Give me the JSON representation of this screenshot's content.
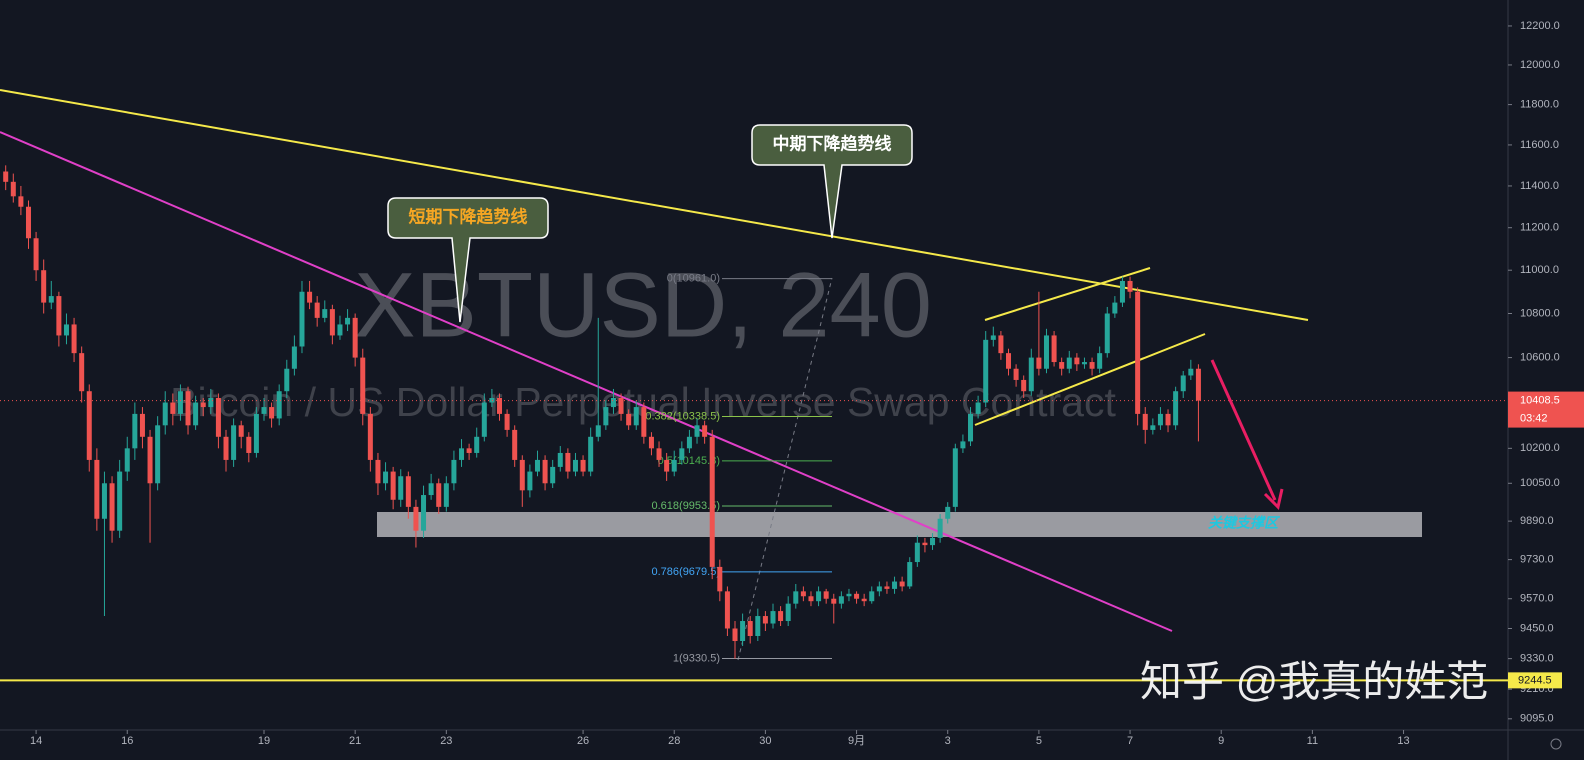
{
  "chart_data": {
    "type": "candlestick",
    "title": "XBTUSD, 240",
    "subtitle": "Bitcoin / US Dollar Perpetual Inverse Swap Contract",
    "log_scale": true,
    "up_color": "#26a69a",
    "down_color": "#ef5350",
    "xlim": [
      293,
      1087
    ],
    "xticks": [
      {
        "value": 312,
        "label": "14"
      },
      {
        "value": 360,
        "label": "16"
      },
      {
        "value": 432,
        "label": "19"
      },
      {
        "value": 480,
        "label": "21"
      },
      {
        "value": 528,
        "label": "23"
      },
      {
        "value": 600,
        "label": "26"
      },
      {
        "value": 648,
        "label": "28"
      },
      {
        "value": 696,
        "label": "30"
      },
      {
        "value": 744,
        "label": "9月"
      },
      {
        "value": 792,
        "label": "3"
      },
      {
        "value": 840,
        "label": "5"
      },
      {
        "value": 888,
        "label": "7"
      },
      {
        "value": 936,
        "label": "9"
      },
      {
        "value": 984,
        "label": "11"
      },
      {
        "value": 1032,
        "label": "13"
      }
    ],
    "ylim": [
      9052,
      12335
    ],
    "yticks": [
      {
        "value": 12200,
        "label": "12200.0"
      },
      {
        "value": 12000,
        "label": "12000.0"
      },
      {
        "value": 11800,
        "label": "11800.0"
      },
      {
        "value": 11600,
        "label": "11600.0"
      },
      {
        "value": 11400,
        "label": "11400.0"
      },
      {
        "value": 11200,
        "label": "11200.0"
      },
      {
        "value": 11000,
        "label": "11000.0"
      },
      {
        "value": 10800,
        "label": "10800.0"
      },
      {
        "value": 10600,
        "label": "10600.0"
      },
      {
        "value": 10200,
        "label": "10200.0"
      },
      {
        "value": 10050,
        "label": "10050.0"
      },
      {
        "value": 9890,
        "label": "9890.0"
      },
      {
        "value": 9730,
        "label": "9730.0"
      },
      {
        "value": 9570,
        "label": "9570.0"
      },
      {
        "value": 9450,
        "label": "9450.0"
      },
      {
        "value": 9330,
        "label": "9330.0"
      },
      {
        "value": 9210,
        "label": "9210.0"
      },
      {
        "value": 9095,
        "label": "9095.0"
      }
    ],
    "x": [
      296,
      300,
      304,
      308,
      312,
      316,
      320,
      324,
      328,
      332,
      336,
      340,
      344,
      348,
      352,
      356,
      360,
      364,
      368,
      372,
      376,
      380,
      384,
      388,
      392,
      396,
      400,
      404,
      408,
      412,
      416,
      420,
      424,
      428,
      432,
      436,
      440,
      444,
      448,
      452,
      456,
      460,
      464,
      468,
      472,
      476,
      480,
      484,
      488,
      492,
      496,
      500,
      504,
      508,
      512,
      516,
      520,
      524,
      528,
      532,
      536,
      540,
      544,
      548,
      552,
      556,
      560,
      564,
      568,
      572,
      576,
      580,
      584,
      588,
      592,
      596,
      600,
      604,
      608,
      612,
      616,
      620,
      624,
      628,
      632,
      636,
      640,
      644,
      648,
      652,
      656,
      660,
      664,
      668,
      672,
      676,
      680,
      684,
      688,
      692,
      696,
      700,
      704,
      708,
      712,
      716,
      720,
      724,
      728,
      732,
      736,
      740,
      744,
      748,
      752,
      756,
      760,
      764,
      768,
      772,
      776,
      780,
      784,
      788,
      792,
      796,
      800,
      804,
      808,
      812,
      816,
      820,
      824,
      828,
      832,
      836,
      840,
      844,
      848,
      852,
      856,
      860,
      864,
      868,
      872,
      876,
      880,
      884,
      888,
      892,
      896,
      900,
      904,
      908,
      912,
      916,
      920,
      924
    ],
    "ohlc": [
      [
        11470,
        11500,
        11380,
        11420
      ],
      [
        11420,
        11460,
        11320,
        11350
      ],
      [
        11350,
        11400,
        11260,
        11300
      ],
      [
        11300,
        11330,
        11100,
        11150
      ],
      [
        11150,
        11180,
        10950,
        11000
      ],
      [
        11000,
        11050,
        10800,
        10850
      ],
      [
        10850,
        10950,
        10820,
        10880
      ],
      [
        10880,
        10900,
        10650,
        10700
      ],
      [
        10700,
        10800,
        10660,
        10750
      ],
      [
        10750,
        10780,
        10580,
        10620
      ],
      [
        10620,
        10650,
        10400,
        10450
      ],
      [
        10450,
        10480,
        10100,
        10150
      ],
      [
        10150,
        10200,
        9850,
        9900
      ],
      [
        9900,
        10100,
        9500,
        10050
      ],
      [
        10050,
        10080,
        9800,
        9850
      ],
      [
        9850,
        10150,
        9820,
        10100
      ],
      [
        10100,
        10250,
        10060,
        10200
      ],
      [
        10200,
        10400,
        10150,
        10350
      ],
      [
        10350,
        10380,
        10200,
        10250
      ],
      [
        10250,
        10280,
        9800,
        10050
      ],
      [
        10050,
        10340,
        10020,
        10300
      ],
      [
        10300,
        10450,
        10260,
        10400
      ],
      [
        10400,
        10440,
        10300,
        10350
      ],
      [
        10350,
        10480,
        10320,
        10450
      ],
      [
        10450,
        10470,
        10260,
        10300
      ],
      [
        10300,
        10430,
        10280,
        10400
      ],
      [
        10400,
        10420,
        10340,
        10380
      ],
      [
        10380,
        10460,
        10350,
        10420
      ],
      [
        10420,
        10440,
        10200,
        10250
      ],
      [
        10250,
        10280,
        10100,
        10150
      ],
      [
        10150,
        10330,
        10120,
        10300
      ],
      [
        10300,
        10320,
        10200,
        10250
      ],
      [
        10250,
        10270,
        10140,
        10180
      ],
      [
        10180,
        10380,
        10160,
        10350
      ],
      [
        10350,
        10420,
        10320,
        10380
      ],
      [
        10380,
        10400,
        10290,
        10330
      ],
      [
        10330,
        10480,
        10300,
        10450
      ],
      [
        10450,
        10590,
        10420,
        10550
      ],
      [
        10550,
        10700,
        10520,
        10650
      ],
      [
        10650,
        10950,
        10620,
        10900
      ],
      [
        10900,
        10950,
        10820,
        10850
      ],
      [
        10850,
        10880,
        10740,
        10780
      ],
      [
        10780,
        10860,
        10760,
        10820
      ],
      [
        10820,
        10840,
        10660,
        10700
      ],
      [
        10700,
        10790,
        10680,
        10750
      ],
      [
        10750,
        10820,
        10720,
        10780
      ],
      [
        10780,
        10800,
        10560,
        10600
      ],
      [
        10600,
        10640,
        10300,
        10350
      ],
      [
        10350,
        10380,
        10100,
        10150
      ],
      [
        10150,
        10180,
        10000,
        10050
      ],
      [
        10050,
        10140,
        10020,
        10100
      ],
      [
        10100,
        10120,
        9940,
        9980
      ],
      [
        9980,
        10110,
        9950,
        10080
      ],
      [
        10080,
        10100,
        9900,
        9950
      ],
      [
        9950,
        9980,
        9780,
        9850
      ],
      [
        9850,
        10040,
        9820,
        10000
      ],
      [
        10000,
        10090,
        9980,
        10050
      ],
      [
        10050,
        10070,
        9920,
        9950
      ],
      [
        9950,
        10080,
        9930,
        10050
      ],
      [
        10050,
        10190,
        10020,
        10150
      ],
      [
        10150,
        10240,
        10120,
        10200
      ],
      [
        10200,
        10220,
        10150,
        10180
      ],
      [
        10180,
        10290,
        10160,
        10250
      ],
      [
        10250,
        10440,
        10230,
        10400
      ],
      [
        10400,
        10460,
        10380,
        10420
      ],
      [
        10420,
        10440,
        10320,
        10350
      ],
      [
        10350,
        10370,
        10250,
        10280
      ],
      [
        10280,
        10300,
        10120,
        10150
      ],
      [
        10150,
        10170,
        9950,
        10020
      ],
      [
        10020,
        10130,
        9990,
        10100
      ],
      [
        10100,
        10190,
        10080,
        10150
      ],
      [
        10150,
        10170,
        10020,
        10050
      ],
      [
        10050,
        10150,
        10030,
        10120
      ],
      [
        10120,
        10210,
        10100,
        10180
      ],
      [
        10180,
        10200,
        10070,
        10100
      ],
      [
        10100,
        10180,
        10080,
        10150
      ],
      [
        10150,
        10170,
        10080,
        10100
      ],
      [
        10100,
        10290,
        10080,
        10250
      ],
      [
        10250,
        10780,
        10230,
        10300
      ],
      [
        10300,
        10410,
        10280,
        10380
      ],
      [
        10380,
        10460,
        10350,
        10420
      ],
      [
        10420,
        10440,
        10320,
        10350
      ],
      [
        10350,
        10370,
        10280,
        10300
      ],
      [
        10300,
        10410,
        10280,
        10380
      ],
      [
        10380,
        10400,
        10220,
        10250
      ],
      [
        10250,
        10270,
        10170,
        10200
      ],
      [
        10200,
        10230,
        10120,
        10150
      ],
      [
        10150,
        10180,
        10060,
        10100
      ],
      [
        10100,
        10190,
        10080,
        10150
      ],
      [
        10150,
        10230,
        10130,
        10200
      ],
      [
        10200,
        10280,
        10180,
        10250
      ],
      [
        10250,
        10330,
        10220,
        10300
      ],
      [
        10300,
        10320,
        10220,
        10250
      ],
      [
        10250,
        10280,
        9650,
        9700
      ],
      [
        9700,
        9730,
        9560,
        9600
      ],
      [
        9600,
        9620,
        9420,
        9450
      ],
      [
        9450,
        9480,
        9330,
        9400
      ],
      [
        9400,
        9510,
        9380,
        9480
      ],
      [
        9480,
        9500,
        9390,
        9420
      ],
      [
        9420,
        9530,
        9400,
        9500
      ],
      [
        9500,
        9520,
        9440,
        9470
      ],
      [
        9470,
        9550,
        9450,
        9520
      ],
      [
        9520,
        9540,
        9460,
        9480
      ],
      [
        9480,
        9580,
        9460,
        9550
      ],
      [
        9550,
        9630,
        9530,
        9600
      ],
      [
        9600,
        9620,
        9560,
        9580
      ],
      [
        9580,
        9600,
        9540,
        9560
      ],
      [
        9560,
        9620,
        9540,
        9600
      ],
      [
        9600,
        9610,
        9550,
        9570
      ],
      [
        9570,
        9590,
        9470,
        9550
      ],
      [
        9550,
        9600,
        9530,
        9580
      ],
      [
        9580,
        9610,
        9560,
        9590
      ],
      [
        9590,
        9600,
        9550,
        9570
      ],
      [
        9570,
        9590,
        9540,
        9560
      ],
      [
        9560,
        9620,
        9550,
        9600
      ],
      [
        9600,
        9640,
        9580,
        9620
      ],
      [
        9620,
        9640,
        9590,
        9610
      ],
      [
        9610,
        9660,
        9590,
        9640
      ],
      [
        9640,
        9660,
        9600,
        9620
      ],
      [
        9620,
        9740,
        9610,
        9720
      ],
      [
        9720,
        9830,
        9700,
        9800
      ],
      [
        9800,
        9820,
        9760,
        9790
      ],
      [
        9790,
        9840,
        9770,
        9820
      ],
      [
        9820,
        9920,
        9800,
        9900
      ],
      [
        9900,
        9970,
        9880,
        9950
      ],
      [
        9950,
        10220,
        9930,
        10200
      ],
      [
        10200,
        10260,
        10180,
        10230
      ],
      [
        10230,
        10380,
        10210,
        10350
      ],
      [
        10350,
        10430,
        10330,
        10400
      ],
      [
        10400,
        10720,
        10380,
        10680
      ],
      [
        10680,
        10740,
        10650,
        10700
      ],
      [
        10700,
        10720,
        10590,
        10620
      ],
      [
        10620,
        10640,
        10520,
        10550
      ],
      [
        10550,
        10570,
        10470,
        10500
      ],
      [
        10500,
        10520,
        10420,
        10450
      ],
      [
        10450,
        10640,
        10430,
        10600
      ],
      [
        10600,
        10900,
        10520,
        10550
      ],
      [
        10550,
        10730,
        10530,
        10700
      ],
      [
        10700,
        10720,
        10560,
        10580
      ],
      [
        10580,
        10600,
        10520,
        10550
      ],
      [
        10550,
        10630,
        10530,
        10600
      ],
      [
        10600,
        10620,
        10540,
        10570
      ],
      [
        10570,
        10600,
        10550,
        10580
      ],
      [
        10580,
        10600,
        10520,
        10550
      ],
      [
        10550,
        10650,
        10530,
        10620
      ],
      [
        10620,
        10830,
        10600,
        10800
      ],
      [
        10800,
        10880,
        10780,
        10850
      ],
      [
        10850,
        10970,
        10830,
        10950
      ],
      [
        10950,
        10970,
        10870,
        10900
      ],
      [
        10900,
        10920,
        10300,
        10350
      ],
      [
        10350,
        10380,
        10220,
        10280
      ],
      [
        10280,
        10330,
        10260,
        10300
      ],
      [
        10300,
        10380,
        10280,
        10350
      ],
      [
        10350,
        10370,
        10270,
        10300
      ],
      [
        10300,
        10470,
        10280,
        10450
      ],
      [
        10450,
        10540,
        10420,
        10520
      ],
      [
        10520,
        10590,
        10500,
        10550
      ],
      [
        10550,
        10570,
        10230,
        10408.5
      ]
    ],
    "current_price": 10408.5,
    "countdown": "03:42",
    "support_line": 9244.5,
    "fib_levels": [
      {
        "value": 10961.0,
        "label": "0(10961.0)",
        "color": "#787b86"
      },
      {
        "value": 10338.5,
        "label": "0.382(10338.5)",
        "color": "#8bc34a"
      },
      {
        "value": 10145.8,
        "label": "0.5(10145.8)",
        "color": "#4caf50"
      },
      {
        "value": 9953.5,
        "label": "0.618(9953.5)",
        "color": "#66bb6a"
      },
      {
        "value": 9679.5,
        "label": "0.786(9679.5)",
        "color": "#42a5f5"
      },
      {
        "value": 9330.5,
        "label": "1(9330.5)",
        "color": "#9598a1"
      }
    ],
    "annotations": [
      "中期下降趋势线",
      "短期下降趋势线",
      "关键支撑区"
    ],
    "watermark": "知乎 @我真的姓范"
  }
}
